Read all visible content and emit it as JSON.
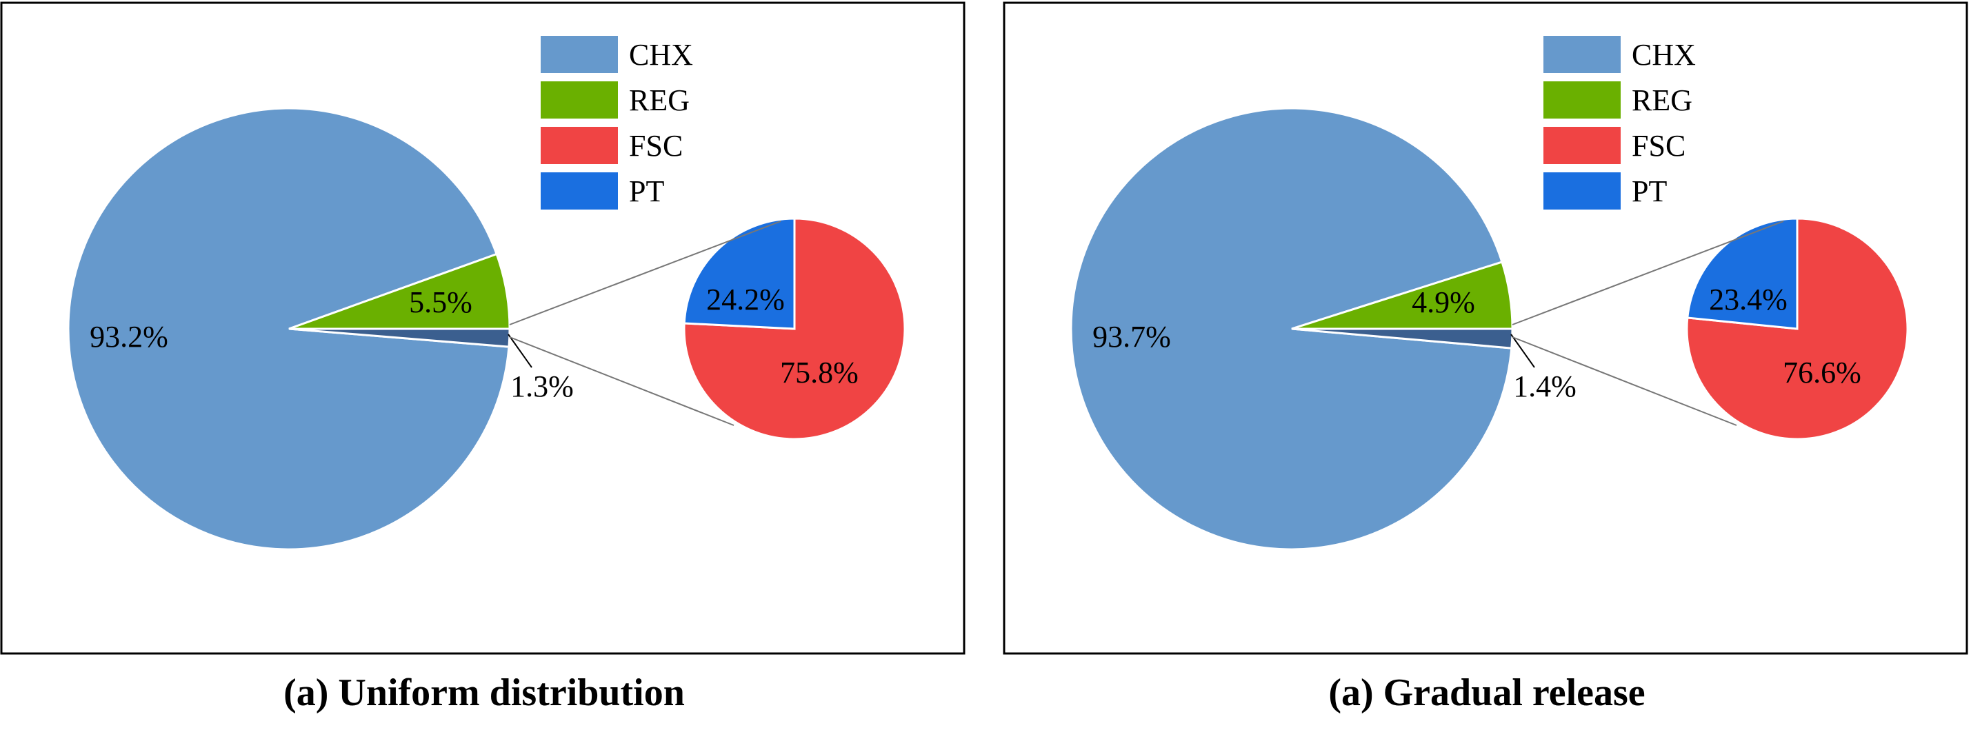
{
  "colors": {
    "CHX": "#6699cc",
    "REG": "#6ab000",
    "FSC": "#f04444",
    "PT": "#1a6fe0",
    "REG_PT_combined": "#3b5f8f"
  },
  "chart_data": [
    {
      "type": "pie",
      "subtype": "bar-of-pie (pie of pie)",
      "caption": "(a) Uniform distribution",
      "legend": [
        "CHX",
        "REG",
        "FSC",
        "PT"
      ],
      "legend_position": "top-right",
      "main_pie": {
        "slices": [
          {
            "name": "CHX",
            "value": 93.2,
            "label": "93.2%"
          },
          {
            "name": "REG",
            "value": 5.5,
            "label": "5.5%"
          },
          {
            "name": "FSC + PT",
            "value": 1.3,
            "label": "1.3%"
          }
        ]
      },
      "sub_pie": {
        "slices": [
          {
            "name": "FSC",
            "value": 75.8,
            "label": "75.8%"
          },
          {
            "name": "PT",
            "value": 24.2,
            "label": "24.2%"
          }
        ]
      }
    },
    {
      "type": "pie",
      "subtype": "bar-of-pie (pie of pie)",
      "caption": "(a) Gradual release",
      "legend": [
        "CHX",
        "REG",
        "FSC",
        "PT"
      ],
      "legend_position": "top-right",
      "main_pie": {
        "slices": [
          {
            "name": "CHX",
            "value": 93.7,
            "label": "93.7%"
          },
          {
            "name": "REG",
            "value": 4.9,
            "label": "4.9%"
          },
          {
            "name": "FSC + PT",
            "value": 1.4,
            "label": "1.4%"
          }
        ]
      },
      "sub_pie": {
        "slices": [
          {
            "name": "FSC",
            "value": 76.6,
            "label": "76.6%"
          },
          {
            "name": "PT",
            "value": 23.4,
            "label": "23.4%"
          }
        ]
      }
    }
  ]
}
